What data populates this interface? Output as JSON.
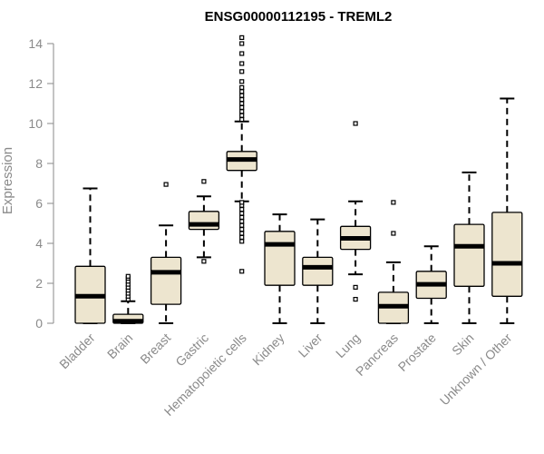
{
  "chart_data": {
    "type": "box",
    "title": "ENSG00000112195 - TREML2",
    "xlabel": "",
    "ylabel": "Expression",
    "ylim": [
      0,
      14.5
    ],
    "yticks": [
      0,
      2,
      4,
      6,
      8,
      10,
      12,
      14
    ],
    "grid": false,
    "legend": "none",
    "colors": {
      "box_fill": "#ede5cf",
      "stroke": "#000000",
      "axis": "#8a8a8a"
    },
    "categories": [
      "Bladder",
      "Brain",
      "Breast",
      "Gastric",
      "Hematopoietic cells",
      "Kidney",
      "Liver",
      "Lung",
      "Pancreas",
      "Prostate",
      "Skin",
      "Unknown / Other"
    ],
    "boxes": [
      {
        "min": 0,
        "q1": 0,
        "median": 1.35,
        "q3": 2.85,
        "max": 6.75,
        "outliers": []
      },
      {
        "min": 0,
        "q1": 0,
        "median": 0.1,
        "q3": 0.45,
        "max": 1.1,
        "outliers": [
          1.2,
          1.35,
          1.5,
          1.65,
          1.8,
          1.95,
          2.1,
          2.25,
          2.35
        ]
      },
      {
        "min": 0,
        "q1": 0.95,
        "median": 2.55,
        "q3": 3.3,
        "max": 4.9,
        "outliers": [
          6.95
        ]
      },
      {
        "min": 3.3,
        "q1": 4.7,
        "median": 4.95,
        "q3": 5.6,
        "max": 6.35,
        "outliers": [
          3.1,
          7.1
        ]
      },
      {
        "min": 6.1,
        "q1": 7.65,
        "median": 8.2,
        "q3": 8.6,
        "max": 10.1,
        "outliers": [
          2.6,
          4.1,
          4.3,
          4.5,
          4.7,
          4.9,
          5.1,
          5.3,
          5.5,
          5.7,
          5.9,
          6.05,
          10.2,
          10.4,
          10.6,
          10.8,
          11.0,
          11.2,
          11.4,
          11.6,
          11.8,
          12.1,
          12.6,
          13.0,
          13.5,
          14.0,
          14.3
        ]
      },
      {
        "min": 0,
        "q1": 1.9,
        "median": 3.95,
        "q3": 4.6,
        "max": 5.45,
        "outliers": []
      },
      {
        "min": 0,
        "q1": 1.9,
        "median": 2.8,
        "q3": 3.3,
        "max": 5.2,
        "outliers": []
      },
      {
        "min": 2.45,
        "q1": 3.7,
        "median": 4.25,
        "q3": 4.85,
        "max": 6.1,
        "outliers": [
          1.2,
          1.8,
          10.0
        ]
      },
      {
        "min": 0,
        "q1": 0,
        "median": 0.85,
        "q3": 1.55,
        "max": 3.05,
        "outliers": [
          4.5,
          6.05
        ]
      },
      {
        "min": 0,
        "q1": 1.25,
        "median": 1.95,
        "q3": 2.6,
        "max": 3.85,
        "outliers": []
      },
      {
        "min": 0,
        "q1": 1.85,
        "median": 3.85,
        "q3": 4.95,
        "max": 7.55,
        "outliers": []
      },
      {
        "min": 0,
        "q1": 1.35,
        "median": 3.0,
        "q3": 5.55,
        "max": 11.25,
        "outliers": []
      }
    ]
  }
}
